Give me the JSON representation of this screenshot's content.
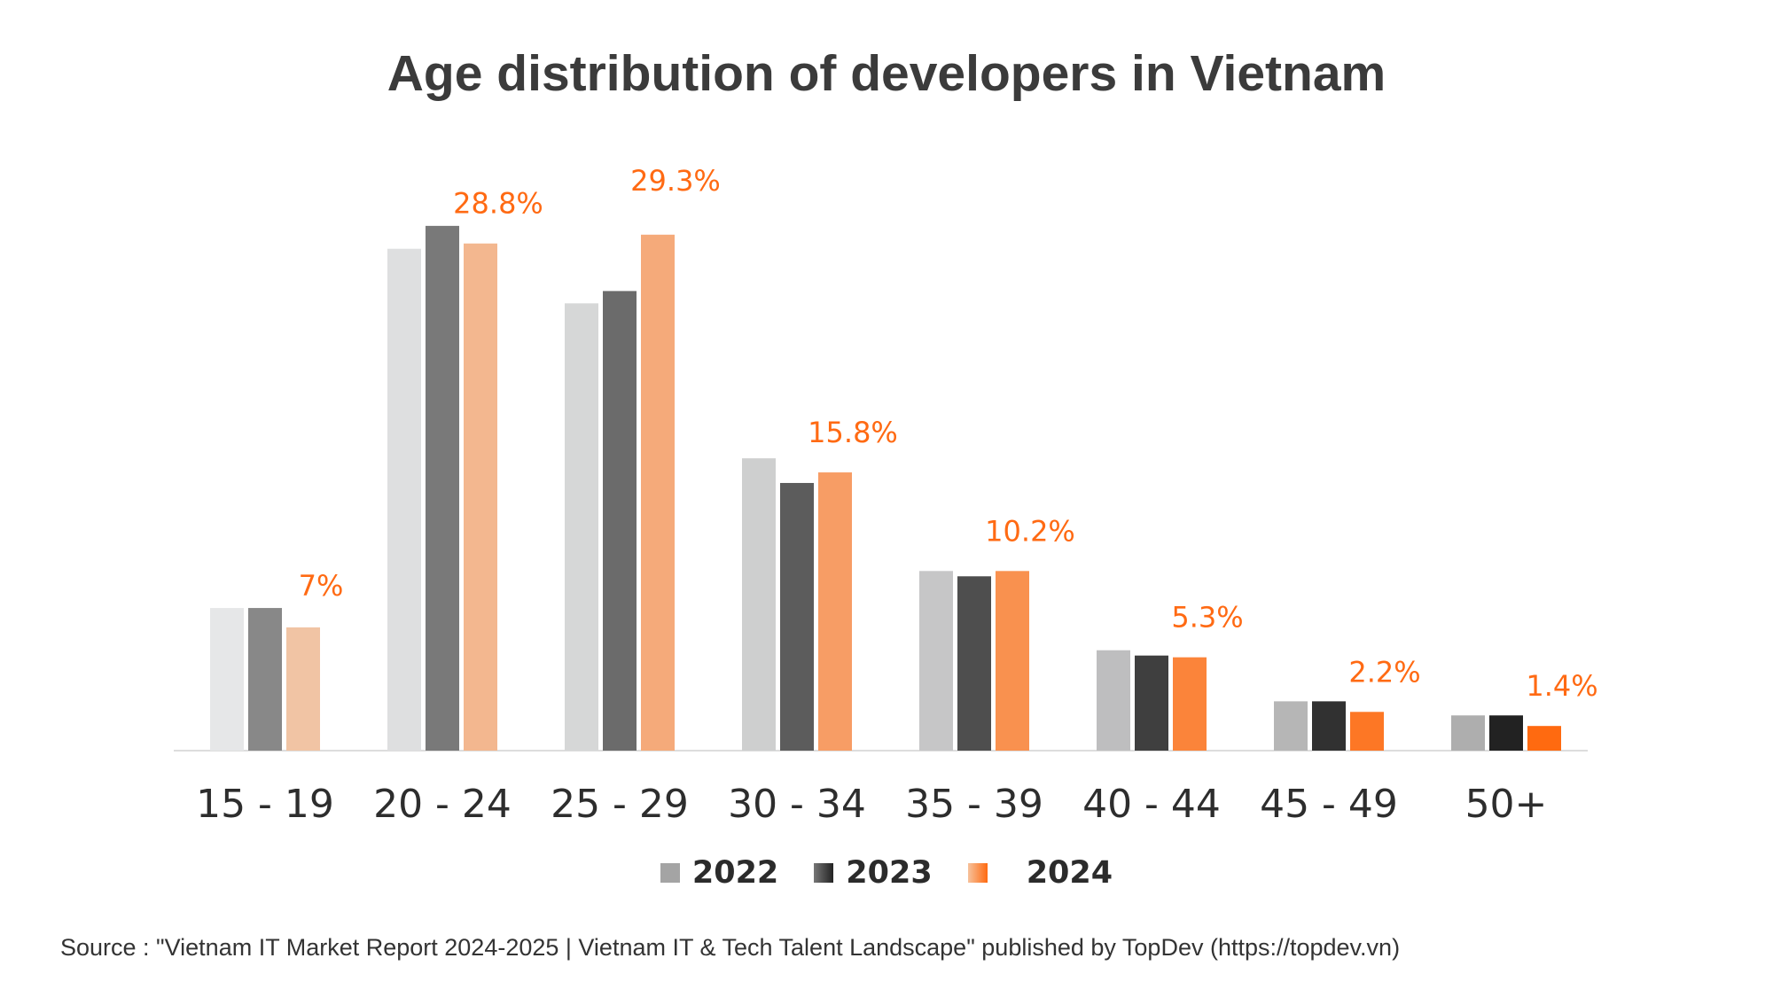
{
  "chart_data": {
    "type": "bar",
    "title": "Age distribution of developers in Vietnam",
    "xlabel": "",
    "ylabel": "",
    "ylim": [
      0,
      32
    ],
    "grid": false,
    "legend_position": "bottom",
    "categories": [
      "15 - 19",
      "20 - 24",
      "25 - 29",
      "30 - 34",
      "35 - 39",
      "40 - 44",
      "45 - 49",
      "50+"
    ],
    "series": [
      {
        "name": "2022",
        "values": [
          8.1,
          28.5,
          25.4,
          16.6,
          10.2,
          5.7,
          2.8,
          2.0
        ],
        "color_start": "#e6e7e8",
        "color_end": "#aeaeae"
      },
      {
        "name": "2023",
        "values": [
          8.1,
          29.8,
          26.1,
          15.2,
          9.9,
          5.4,
          2.8,
          2.0
        ],
        "color_start": "#888888",
        "color_end": "#222222"
      },
      {
        "name": "2024",
        "values": [
          7.0,
          28.8,
          29.3,
          15.8,
          10.2,
          5.3,
          2.2,
          1.4
        ],
        "color_start": "#f1c4a4",
        "color_end": "#ff6a10"
      }
    ],
    "data_labels": [
      "7%",
      "28.8%",
      "29.3%",
      "15.8%",
      "10.2%",
      "5.3%",
      "2.2%",
      "1.4%"
    ],
    "label_color": "#ff6a13"
  },
  "source": "Source : \"Vietnam IT Market Report 2024-2025 | Vietnam IT & Tech Talent Landscape\" published by TopDev (https://topdev.vn)"
}
